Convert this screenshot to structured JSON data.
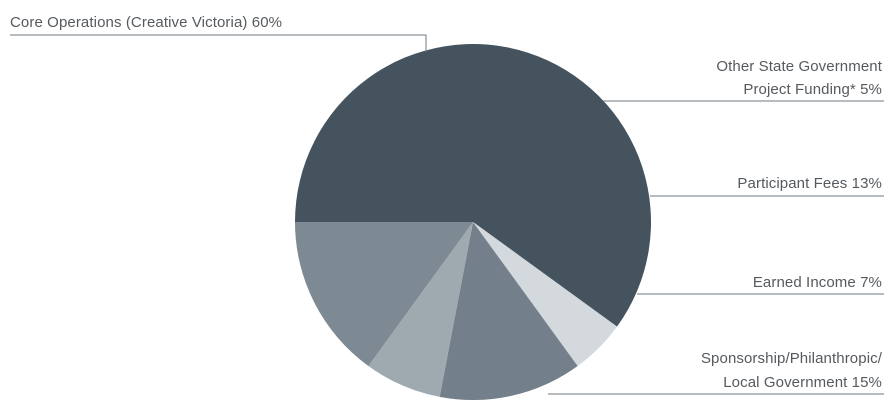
{
  "chart_data": {
    "type": "pie",
    "title": "",
    "slices": [
      {
        "label_lines": [
          "Core Operations (Creative Victoria) 60%"
        ],
        "value": 60,
        "color": "#44535e"
      },
      {
        "label_lines": [
          "Other State Government",
          "Project Funding* 5%"
        ],
        "value": 5,
        "color": "#d4d9dd"
      },
      {
        "label_lines": [
          "Participant Fees 13%"
        ],
        "value": 13,
        "color": "#737f8a"
      },
      {
        "label_lines": [
          "Earned Income 7%"
        ],
        "value": 7,
        "color": "#9fa9b0"
      },
      {
        "label_lines": [
          "Sponsorship/Philanthropic/",
          "Local Government 15%"
        ],
        "value": 15,
        "color": "#7d8993"
      }
    ],
    "start_angle_deg": 180,
    "direction": "clockwise"
  }
}
